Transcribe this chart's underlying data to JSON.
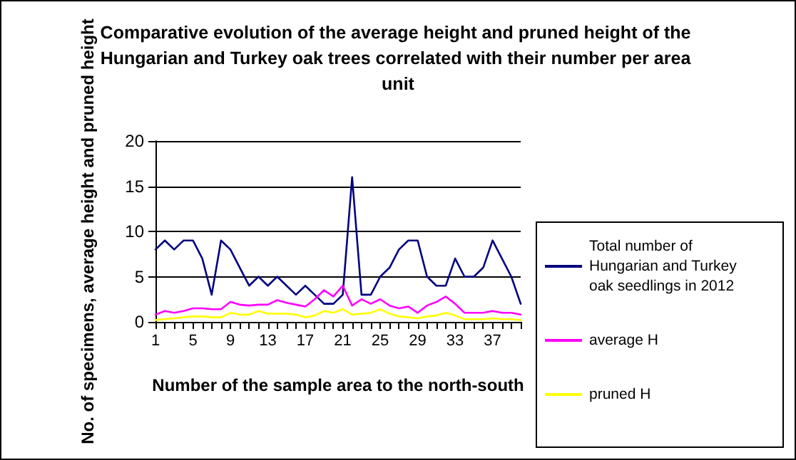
{
  "chart_data": {
    "type": "line",
    "title": "Comparative evolution of the average height and pruned height of the Hungarian and Turkey oak trees correlated with their number per area unit",
    "xlabel": "Number of the sample area to the north-south",
    "ylabel": "No. of specimens, average height and pruned height",
    "categories": [
      "1",
      null,
      null,
      null,
      "5",
      null,
      null,
      null,
      "9",
      null,
      null,
      null,
      "13",
      null,
      null,
      null,
      "17",
      null,
      null,
      null,
      "21",
      null,
      null,
      null,
      "25",
      null,
      null,
      null,
      "29",
      null,
      null,
      null,
      "33",
      null,
      null,
      null,
      "37",
      null,
      null,
      null
    ],
    "series": [
      {
        "name": "Total number of Hungarian and Turkey oak seedlings in 2012",
        "color": "#000080",
        "values": [
          8,
          9,
          8,
          9,
          9,
          7,
          3,
          9,
          8,
          6,
          4,
          5,
          4,
          5,
          4,
          3,
          4,
          3,
          2,
          2,
          3,
          16,
          3,
          3,
          5,
          6,
          8,
          9,
          9,
          5,
          4,
          4,
          7,
          5,
          5,
          6,
          9,
          7,
          5,
          2
        ]
      },
      {
        "name": "average H",
        "color": "#ff00ff",
        "values": [
          0.8,
          1.2,
          1.0,
          1.2,
          1.5,
          1.5,
          1.4,
          1.4,
          2.2,
          1.9,
          1.8,
          1.9,
          1.9,
          2.4,
          2.1,
          1.9,
          1.7,
          2.5,
          3.5,
          2.8,
          4.0,
          1.8,
          2.5,
          2.0,
          2.5,
          1.8,
          1.5,
          1.7,
          1.0,
          1.8,
          2.2,
          2.8,
          2.0,
          1.0,
          1.0,
          1.0,
          1.2,
          1.0,
          1.0,
          0.8
        ]
      },
      {
        "name": "pruned H",
        "color": "#ffff00",
        "values": [
          0.2,
          0.3,
          0.4,
          0.5,
          0.6,
          0.6,
          0.5,
          0.5,
          1.0,
          0.8,
          0.8,
          1.2,
          0.9,
          0.9,
          0.9,
          0.8,
          0.5,
          0.7,
          1.2,
          1.0,
          1.4,
          0.8,
          0.9,
          1.0,
          1.4,
          0.9,
          0.6,
          0.5,
          0.4,
          0.6,
          0.7,
          1.0,
          0.7,
          0.3,
          0.3,
          0.3,
          0.4,
          0.3,
          0.3,
          0.2
        ]
      }
    ],
    "ylim": [
      0,
      20
    ],
    "yticks": [
      0,
      5,
      10,
      15,
      20
    ],
    "grid": "y",
    "legend": "right",
    "marker": "none",
    "line_style": "solid"
  }
}
